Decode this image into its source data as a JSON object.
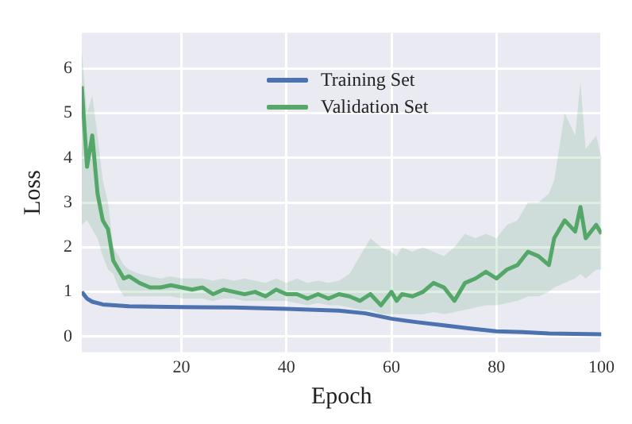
{
  "chart_data": {
    "type": "line",
    "xlabel": "Epoch",
    "ylabel": "Loss",
    "xlim": [
      1,
      100
    ],
    "xticks": [
      20,
      40,
      60,
      80,
      100
    ],
    "ylim": [
      -0.35,
      6.8
    ],
    "yticks": [
      0,
      1,
      2,
      3,
      4,
      5,
      6
    ],
    "grid": true,
    "legend": "top",
    "marker": "none",
    "line_style": "solid",
    "series": [
      {
        "name": "Training Set",
        "color": "#4c72b0",
        "x": [
          1,
          2,
          3,
          5,
          10,
          20,
          30,
          40,
          50,
          55,
          60,
          65,
          70,
          75,
          80,
          85,
          90,
          95,
          100
        ],
        "values": [
          1.0,
          0.85,
          0.78,
          0.72,
          0.68,
          0.66,
          0.65,
          0.62,
          0.58,
          0.52,
          0.4,
          0.32,
          0.25,
          0.18,
          0.12,
          0.1,
          0.07,
          0.06,
          0.05
        ]
      },
      {
        "name": "Validation Set",
        "color": "#55a868",
        "x": [
          1,
          2,
          3,
          4,
          5,
          6,
          7,
          8,
          9,
          10,
          12,
          14,
          16,
          18,
          20,
          22,
          24,
          26,
          28,
          30,
          32,
          34,
          36,
          38,
          40,
          42,
          44,
          46,
          48,
          50,
          52,
          54,
          56,
          58,
          60,
          61,
          62,
          64,
          66,
          68,
          70,
          72,
          74,
          76,
          78,
          80,
          82,
          84,
          86,
          88,
          90,
          91,
          93,
          95,
          96,
          97,
          99,
          100
        ],
        "values": [
          5.6,
          3.8,
          4.5,
          3.2,
          2.6,
          2.4,
          1.7,
          1.5,
          1.3,
          1.35,
          1.2,
          1.1,
          1.1,
          1.15,
          1.1,
          1.05,
          1.1,
          0.95,
          1.05,
          1.0,
          0.95,
          1.0,
          0.9,
          1.05,
          0.95,
          0.95,
          0.85,
          0.95,
          0.85,
          0.95,
          0.9,
          0.8,
          0.95,
          0.7,
          1.0,
          0.8,
          0.95,
          0.9,
          1.0,
          1.2,
          1.1,
          0.8,
          1.2,
          1.3,
          1.45,
          1.3,
          1.5,
          1.6,
          1.9,
          1.8,
          1.6,
          2.2,
          2.6,
          2.35,
          2.9,
          2.2,
          2.5,
          2.3
        ],
        "upper": [
          6.4,
          5.0,
          5.4,
          4.5,
          3.5,
          3.0,
          2.0,
          1.8,
          1.6,
          1.5,
          1.4,
          1.35,
          1.3,
          1.35,
          1.3,
          1.3,
          1.3,
          1.25,
          1.3,
          1.25,
          1.3,
          1.25,
          1.2,
          1.3,
          1.2,
          1.3,
          1.2,
          1.25,
          1.2,
          1.25,
          1.4,
          1.8,
          2.2,
          2.0,
          1.9,
          1.8,
          2.0,
          1.9,
          2.0,
          1.9,
          1.8,
          2.0,
          2.3,
          2.2,
          2.3,
          2.2,
          2.5,
          2.6,
          3.0,
          3.0,
          3.2,
          3.5,
          5.0,
          4.5,
          5.7,
          4.2,
          4.5,
          4.0
        ],
        "lower": [
          2.5,
          2.6,
          2.4,
          2.2,
          1.8,
          1.5,
          1.4,
          1.1,
          0.9,
          0.9,
          0.9,
          0.9,
          0.9,
          0.9,
          0.85,
          0.85,
          0.85,
          0.8,
          0.85,
          0.85,
          0.8,
          0.8,
          0.8,
          0.8,
          0.8,
          0.75,
          0.7,
          0.75,
          0.7,
          0.7,
          0.65,
          0.6,
          0.6,
          0.5,
          0.5,
          0.5,
          0.5,
          0.5,
          0.5,
          0.55,
          0.5,
          0.55,
          0.6,
          0.65,
          0.7,
          0.7,
          0.75,
          0.8,
          0.9,
          0.9,
          1.0,
          1.1,
          1.2,
          1.3,
          1.4,
          1.3,
          1.5,
          1.5
        ]
      }
    ]
  }
}
